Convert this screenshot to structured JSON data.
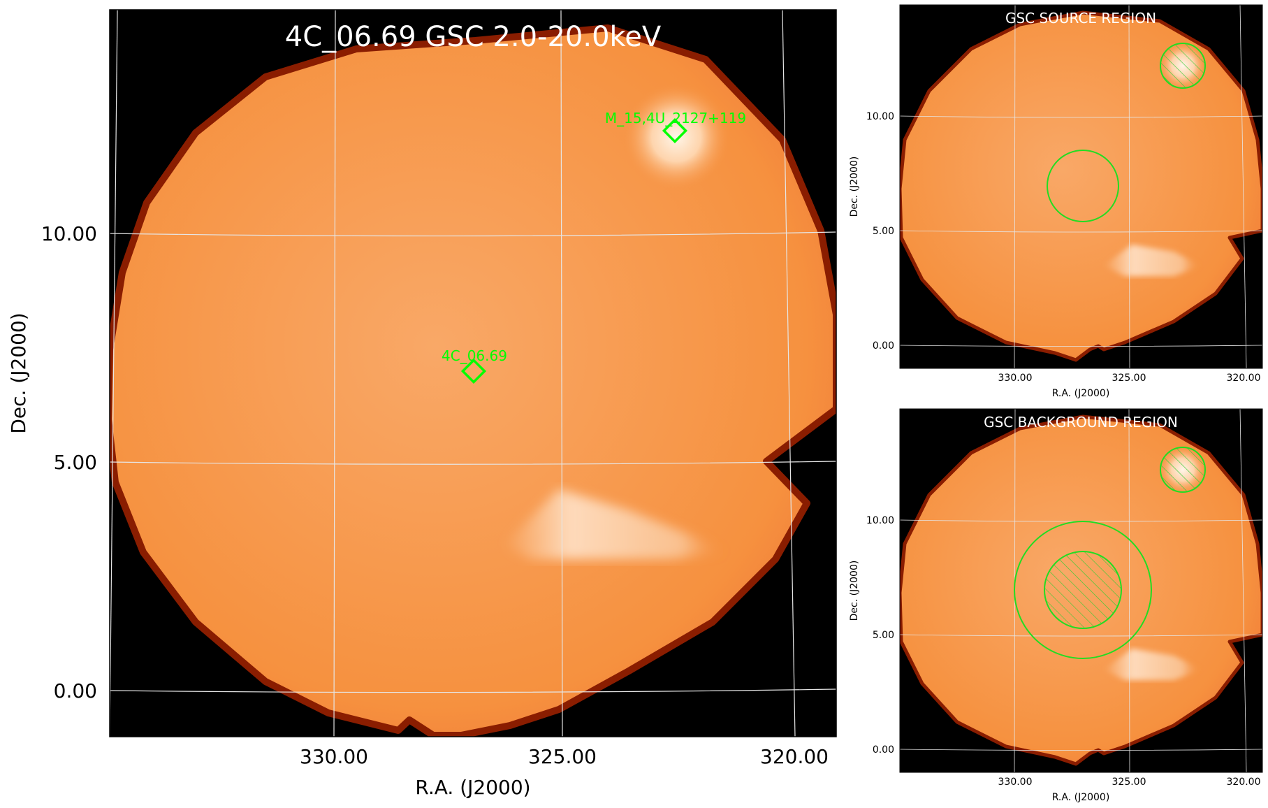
{
  "main": {
    "title": "4C_06.69 GSC 2.0-20.0keV",
    "xlabel": "R.A. (J2000)",
    "ylabel": "Dec. (J2000)",
    "x_ticks": [
      "330.00",
      "325.00",
      "320.00"
    ],
    "y_ticks": [
      "10.00",
      "5.00",
      "0.00"
    ],
    "sources": [
      {
        "label": "M_15,4U_2127+119",
        "ra": 322.5,
        "dec": 12.2
      },
      {
        "label": "4C_06.69",
        "ra": 327.0,
        "dec": 7.0
      }
    ]
  },
  "source_panel": {
    "title": "GSC SOURCE REGION",
    "xlabel": "R.A. (J2000)",
    "ylabel": "Dec. (J2000)",
    "x_ticks": [
      "330.00",
      "325.00",
      "320.00"
    ],
    "y_ticks": [
      "10.00",
      "5.00",
      "0.00"
    ]
  },
  "background_panel": {
    "title": "GSC BACKGROUND REGION",
    "xlabel": "R.A. (J2000)",
    "ylabel": "Dec. (J2000)",
    "x_ticks": [
      "330.00",
      "325.00",
      "320.00"
    ],
    "y_ticks": [
      "10.00",
      "5.00",
      "0.00"
    ]
  },
  "colors": {
    "field": "#f6913f",
    "edge": "#7a1a00",
    "background": "#000000",
    "region": "#00ff00",
    "grid": "#e8e8e8",
    "title_text": "#ffffff"
  }
}
